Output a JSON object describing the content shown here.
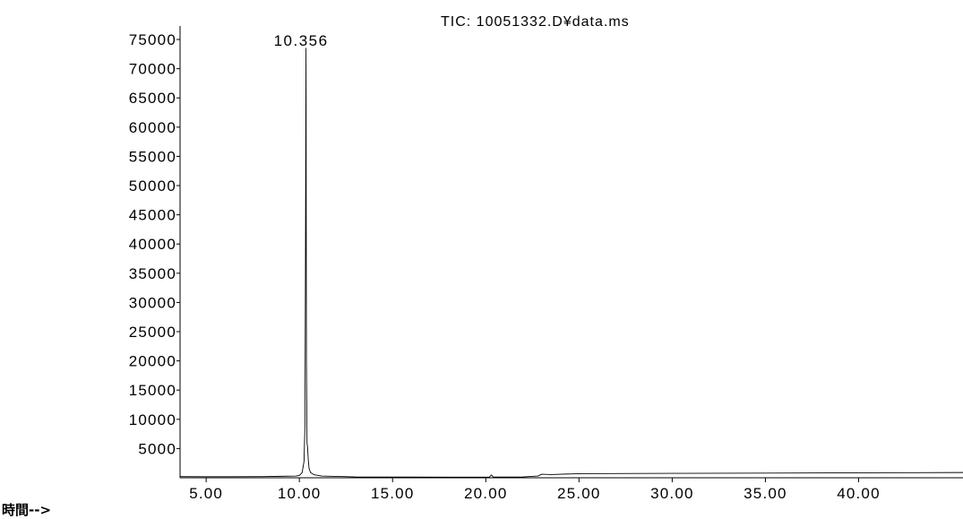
{
  "chart_data": {
    "type": "line",
    "title": "TIC: 10051332.D¥data.ms",
    "xlabel": "時間-->",
    "ylabel": "",
    "xlim": [
      3.6,
      45.6
    ],
    "ylim": [
      0,
      77000
    ],
    "x_ticks": [
      5,
      10,
      15,
      20,
      25,
      30,
      35,
      40
    ],
    "x_tick_labels": [
      "5.00",
      "10.00",
      "15.00",
      "20.00",
      "25.00",
      "30.00",
      "35.00",
      "40.00"
    ],
    "y_ticks": [
      5000,
      10000,
      15000,
      20000,
      25000,
      30000,
      35000,
      40000,
      45000,
      50000,
      55000,
      60000,
      65000,
      70000,
      75000
    ],
    "y_tick_labels": [
      "5000",
      "10000",
      "15000",
      "20000",
      "25000",
      "30000",
      "35000",
      "40000",
      "45000",
      "50000",
      "55000",
      "60000",
      "65000",
      "70000",
      "75000"
    ],
    "grid": false,
    "peak_labels": [
      {
        "x": 10.356,
        "y": 73500,
        "label": "10.356"
      }
    ],
    "series": [
      {
        "x": [
          3.6,
          5.0,
          8.0,
          9.0,
          9.8,
          10.0,
          10.15,
          10.25,
          10.3,
          10.33,
          10.356,
          10.38,
          10.41,
          10.44,
          10.48,
          10.52,
          10.6,
          10.8,
          11.2,
          13.0,
          18.0,
          20.2,
          20.3,
          20.4,
          22.0,
          22.8,
          23.0,
          23.5,
          25.0,
          30.0,
          35.0,
          40.0,
          45.6
        ],
        "y": [
          200,
          180,
          200,
          250,
          300,
          400,
          900,
          2800,
          9000,
          40000,
          73500,
          20000,
          6000,
          5200,
          3000,
          1600,
          900,
          500,
          300,
          150,
          100,
          120,
          500,
          120,
          150,
          300,
          600,
          550,
          700,
          750,
          800,
          850,
          900
        ]
      }
    ]
  }
}
